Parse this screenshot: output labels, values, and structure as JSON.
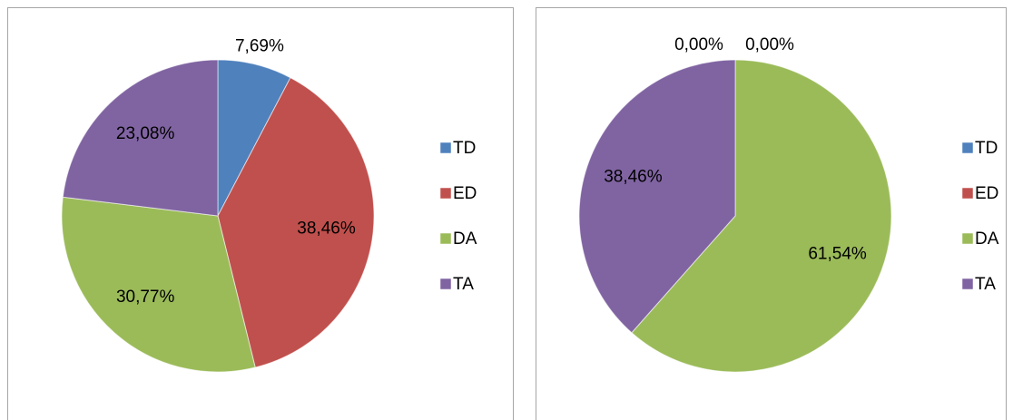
{
  "chart_data": [
    {
      "type": "pie",
      "categories": [
        "TD",
        "ED",
        "DA",
        "TA"
      ],
      "values": [
        7.69,
        38.46,
        30.77,
        23.08
      ],
      "value_labels": [
        "7,69%",
        "38,46%",
        "30,77%",
        "23,08%"
      ],
      "colors": [
        "#4f81bd",
        "#c0504d",
        "#9bbb59",
        "#8064a2"
      ],
      "legend": "right"
    },
    {
      "type": "pie",
      "categories": [
        "TD",
        "ED",
        "DA",
        "TA"
      ],
      "values": [
        0,
        0,
        61.54,
        38.46
      ],
      "value_labels": [
        "0,00%",
        "0,00%",
        "61,54%",
        "38,46%"
      ],
      "colors": [
        "#4f81bd",
        "#c0504d",
        "#9bbb59",
        "#8064a2"
      ],
      "legend": "right"
    }
  ]
}
